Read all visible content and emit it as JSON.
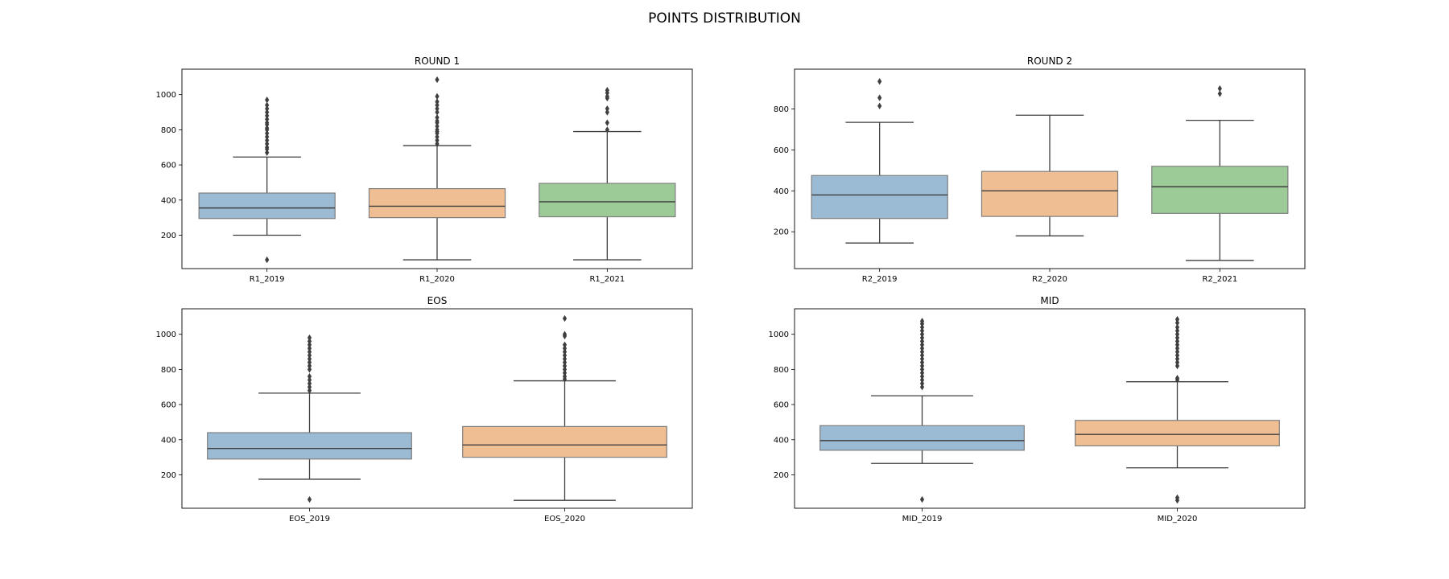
{
  "figure": {
    "title": "POINTS DISTRIBUTION"
  },
  "colors": {
    "box_fills": [
      "#9bbad3",
      "#f0be93",
      "#9ccb98"
    ],
    "box_edge": "#7f7f7f",
    "whisker": "#3f3f3f",
    "median": "#3f3f3f",
    "outlier": "#3f3f3f",
    "axes": "#000000"
  },
  "chart_data": [
    {
      "type": "box",
      "title": "ROUND 1",
      "categories": [
        "R1_2019",
        "R1_2020",
        "R1_2021"
      ],
      "ylim": [
        10,
        1145
      ],
      "yticks": [
        200,
        400,
        600,
        800,
        1000
      ],
      "grid": false,
      "boxes": [
        {
          "whislo": 200,
          "q1": 295,
          "median": 355,
          "q3": 440,
          "whishi": 645,
          "outliers": [
            60,
            670,
            690,
            700,
            720,
            740,
            760,
            780,
            800,
            810,
            830,
            840,
            860,
            880,
            900,
            920,
            940,
            970
          ]
        },
        {
          "whislo": 60,
          "q1": 300,
          "median": 365,
          "q3": 465,
          "whishi": 710,
          "outliers": [
            720,
            740,
            760,
            780,
            790,
            800,
            820,
            840,
            850,
            870,
            900,
            920,
            940,
            960,
            990,
            1085
          ]
        },
        {
          "whislo": 60,
          "q1": 305,
          "median": 390,
          "q3": 495,
          "whishi": 790,
          "outliers": [
            800,
            840,
            900,
            920,
            980,
            990,
            1010,
            1025
          ]
        }
      ]
    },
    {
      "type": "box",
      "title": "ROUND 2",
      "categories": [
        "R2_2019",
        "R2_2020",
        "R2_2021"
      ],
      "ylim": [
        20,
        995
      ],
      "yticks": [
        200,
        400,
        600,
        800
      ],
      "grid": false,
      "boxes": [
        {
          "whislo": 145,
          "q1": 265,
          "median": 380,
          "q3": 475,
          "whishi": 735,
          "outliers": [
            815,
            855,
            935
          ]
        },
        {
          "whislo": 180,
          "q1": 275,
          "median": 400,
          "q3": 495,
          "whishi": 770,
          "outliers": []
        },
        {
          "whislo": 60,
          "q1": 290,
          "median": 420,
          "q3": 520,
          "whishi": 745,
          "outliers": [
            875,
            900
          ]
        }
      ]
    },
    {
      "type": "box",
      "title": "EOS",
      "categories": [
        "EOS_2019",
        "EOS_2020"
      ],
      "ylim": [
        10,
        1145
      ],
      "yticks": [
        200,
        400,
        600,
        800,
        1000
      ],
      "grid": false,
      "boxes": [
        {
          "whislo": 175,
          "q1": 290,
          "median": 350,
          "q3": 440,
          "whishi": 665,
          "outliers": [
            60,
            680,
            700,
            720,
            740,
            760,
            800,
            820,
            840,
            860,
            880,
            900,
            920,
            940,
            960,
            980
          ]
        },
        {
          "whislo": 55,
          "q1": 300,
          "median": 370,
          "q3": 475,
          "whishi": 735,
          "outliers": [
            745,
            760,
            780,
            800,
            820,
            840,
            860,
            880,
            900,
            920,
            940,
            990,
            1000,
            1090
          ]
        }
      ]
    },
    {
      "type": "box",
      "title": "MID",
      "categories": [
        "MID_2019",
        "MID_2020"
      ],
      "ylim": [
        10,
        1145
      ],
      "yticks": [
        200,
        400,
        600,
        800,
        1000
      ],
      "grid": false,
      "boxes": [
        {
          "whislo": 265,
          "q1": 340,
          "median": 395,
          "q3": 480,
          "whishi": 650,
          "outliers": [
            60,
            700,
            720,
            740,
            760,
            780,
            800,
            820,
            840,
            860,
            880,
            900,
            920,
            940,
            960,
            980,
            1000,
            1020,
            1040,
            1060,
            1075
          ]
        },
        {
          "whislo": 240,
          "q1": 365,
          "median": 430,
          "q3": 510,
          "whishi": 730,
          "outliers": [
            55,
            70,
            740,
            750,
            820,
            840,
            860,
            880,
            900,
            920,
            940,
            960,
            980,
            1000,
            1020,
            1040,
            1065,
            1085
          ]
        }
      ]
    }
  ]
}
